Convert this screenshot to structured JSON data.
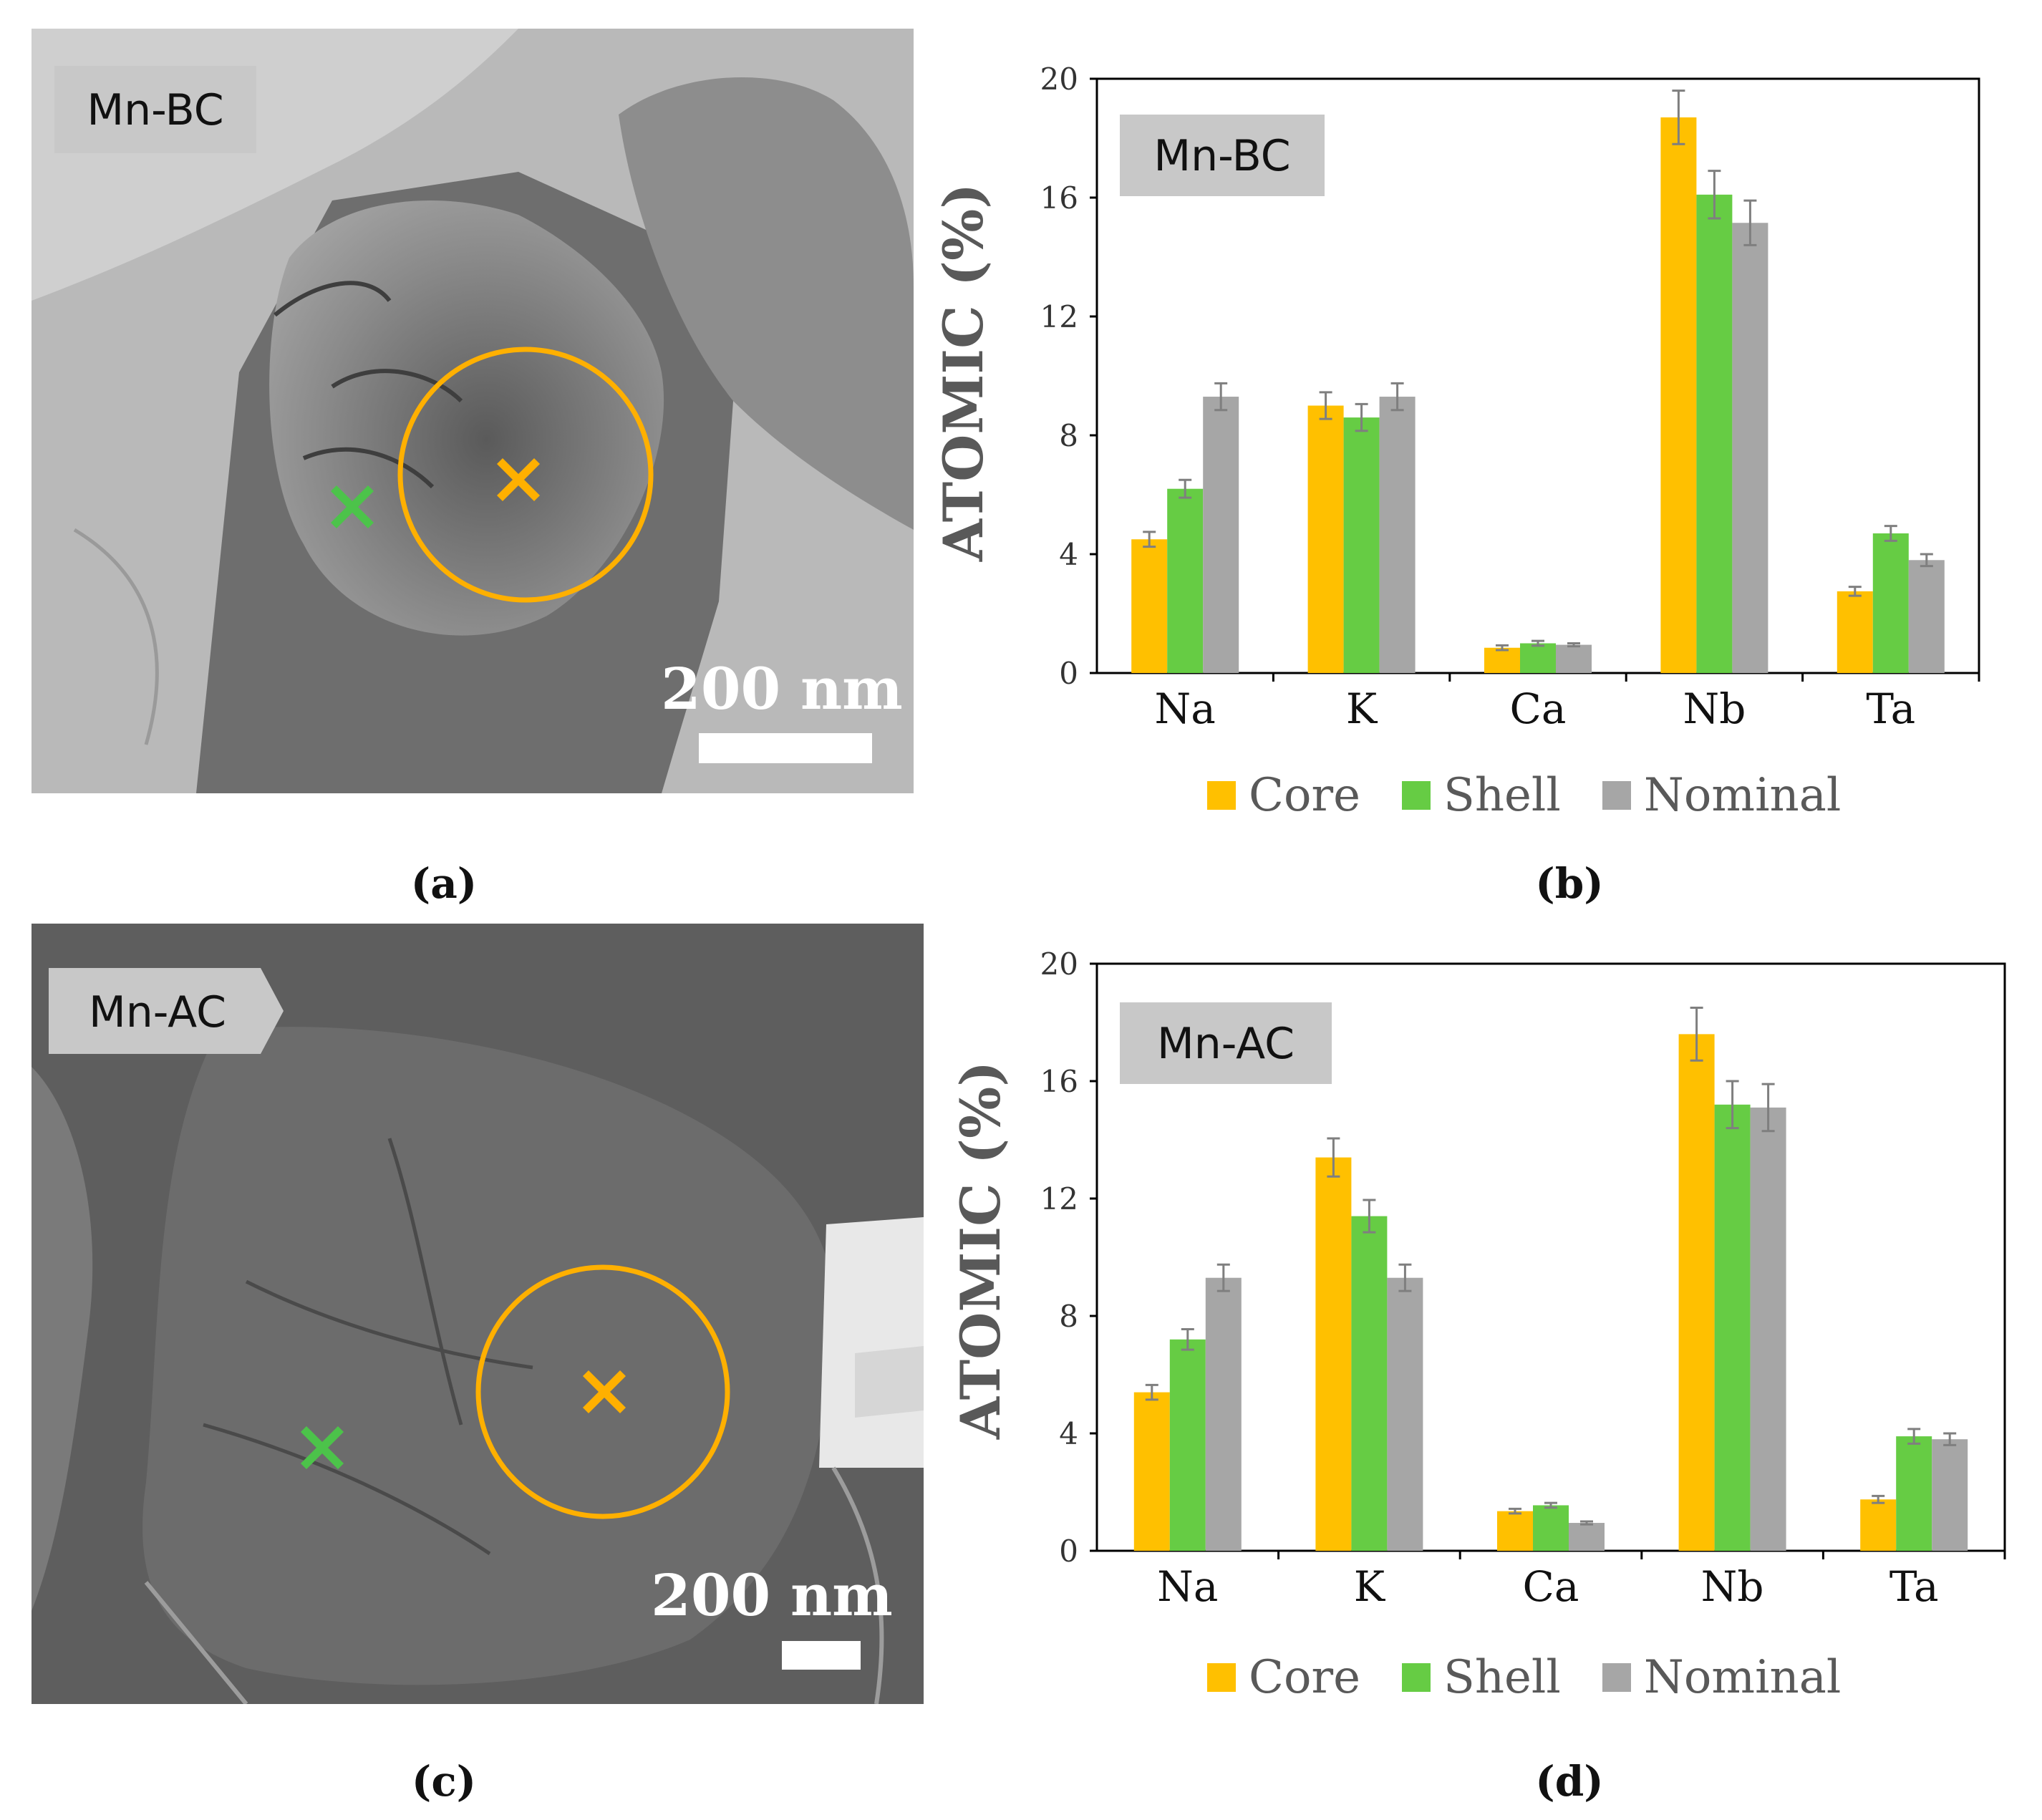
{
  "figure": {
    "panel_labels": [
      "(a)",
      "(b)",
      "(c)",
      "(d)"
    ]
  },
  "tem_images": [
    {
      "sample_label": "Mn-BC",
      "scale_bar_text": "200 nm"
    },
    {
      "sample_label": "Mn-AC",
      "scale_bar_text": "200 nm"
    }
  ],
  "colors": {
    "core": "#FFC000",
    "shell": "#66CC44",
    "nominal": "#A6A6A6",
    "error_bar": "#7F7F7F"
  },
  "chart_data": [
    {
      "type": "bar",
      "inset_label": "Mn-BC",
      "categories": [
        "Na",
        "K",
        "Ca",
        "Nb",
        "Ta"
      ],
      "ylabel": "ATOMIC (%)",
      "xlabel": "",
      "ylim": [
        0,
        20
      ],
      "yticks": [
        "0",
        "4",
        "8",
        "12",
        "16",
        "20"
      ],
      "grid": false,
      "legend_position": "bottom",
      "series": [
        {
          "name": "Core",
          "values": [
            4.5,
            9.0,
            0.85,
            18.7,
            2.75
          ],
          "errors": [
            0.25,
            0.45,
            0.08,
            0.9,
            0.15
          ]
        },
        {
          "name": "Shell",
          "values": [
            6.2,
            8.6,
            1.0,
            16.1,
            4.7
          ],
          "errors": [
            0.3,
            0.45,
            0.08,
            0.8,
            0.25
          ]
        },
        {
          "name": "Nominal",
          "values": [
            9.3,
            9.3,
            0.95,
            15.15,
            3.8
          ],
          "errors": [
            0.45,
            0.45,
            0.05,
            0.75,
            0.2
          ]
        }
      ]
    },
    {
      "type": "bar",
      "inset_label": "Mn-AC",
      "categories": [
        "Na",
        "K",
        "Ca",
        "Nb",
        "Ta"
      ],
      "ylabel": "ATOMIC (%)",
      "xlabel": "",
      "ylim": [
        0,
        20
      ],
      "yticks": [
        "0",
        "4",
        "8",
        "12",
        "16",
        "20"
      ],
      "grid": false,
      "legend_position": "bottom",
      "series": [
        {
          "name": "Core",
          "values": [
            5.4,
            13.4,
            1.35,
            17.6,
            1.75
          ],
          "errors": [
            0.25,
            0.65,
            0.08,
            0.9,
            0.12
          ]
        },
        {
          "name": "Shell",
          "values": [
            7.2,
            11.4,
            1.55,
            15.2,
            3.9
          ],
          "errors": [
            0.35,
            0.55,
            0.08,
            0.8,
            0.25
          ]
        },
        {
          "name": "Nominal",
          "values": [
            9.3,
            9.3,
            0.95,
            15.1,
            3.8
          ],
          "errors": [
            0.45,
            0.45,
            0.05,
            0.8,
            0.2
          ]
        }
      ]
    }
  ]
}
